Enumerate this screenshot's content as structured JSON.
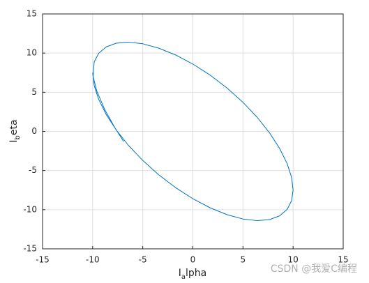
{
  "chart_data": {
    "type": "line",
    "xlabel": [
      "I",
      "a",
      "lpha"
    ],
    "ylabel": [
      "I",
      "b",
      "eta"
    ],
    "watermark": "CSDN @我爱C编程",
    "xlim": [
      -15,
      15
    ],
    "ylim": [
      -15,
      15
    ],
    "xticks": [
      -15,
      -10,
      -5,
      0,
      5,
      10,
      15
    ],
    "yticks": [
      -15,
      -10,
      -5,
      0,
      5,
      10,
      15
    ],
    "grid": true,
    "series": [
      {
        "color": "#0072bd",
        "x": [
          -6.9,
          -7.8,
          -8.8,
          -9.6,
          -9.95,
          -9.85,
          -9.4,
          -8.66,
          -7.66,
          -6.43,
          -5.0,
          -3.42,
          -1.74,
          0,
          1.74,
          3.42,
          5.0,
          6.43,
          7.66,
          8.66,
          9.4,
          9.85,
          10,
          9.85,
          9.4,
          8.66,
          7.66,
          6.43,
          5.0,
          3.42,
          1.74,
          0,
          -1.74,
          -3.42,
          -5.0,
          -6.43,
          -7.66,
          -8.66,
          -9.4,
          -9.85,
          -10
        ],
        "values": [
          -1.3,
          0.5,
          2.8,
          5.2,
          7.0,
          8.86,
          9.97,
          10.78,
          11.26,
          11.4,
          11.19,
          10.64,
          9.77,
          8.6,
          7.17,
          5.53,
          3.71,
          1.78,
          -0.2,
          -2.18,
          -4.09,
          -5.87,
          -7.48,
          -8.86,
          -9.97,
          -10.78,
          -11.26,
          -11.4,
          -11.19,
          -10.64,
          -9.77,
          -8.6,
          -7.17,
          -5.53,
          -3.71,
          -1.78,
          0.2,
          2.18,
          4.09,
          5.87,
          7.48
        ]
      }
    ]
  }
}
